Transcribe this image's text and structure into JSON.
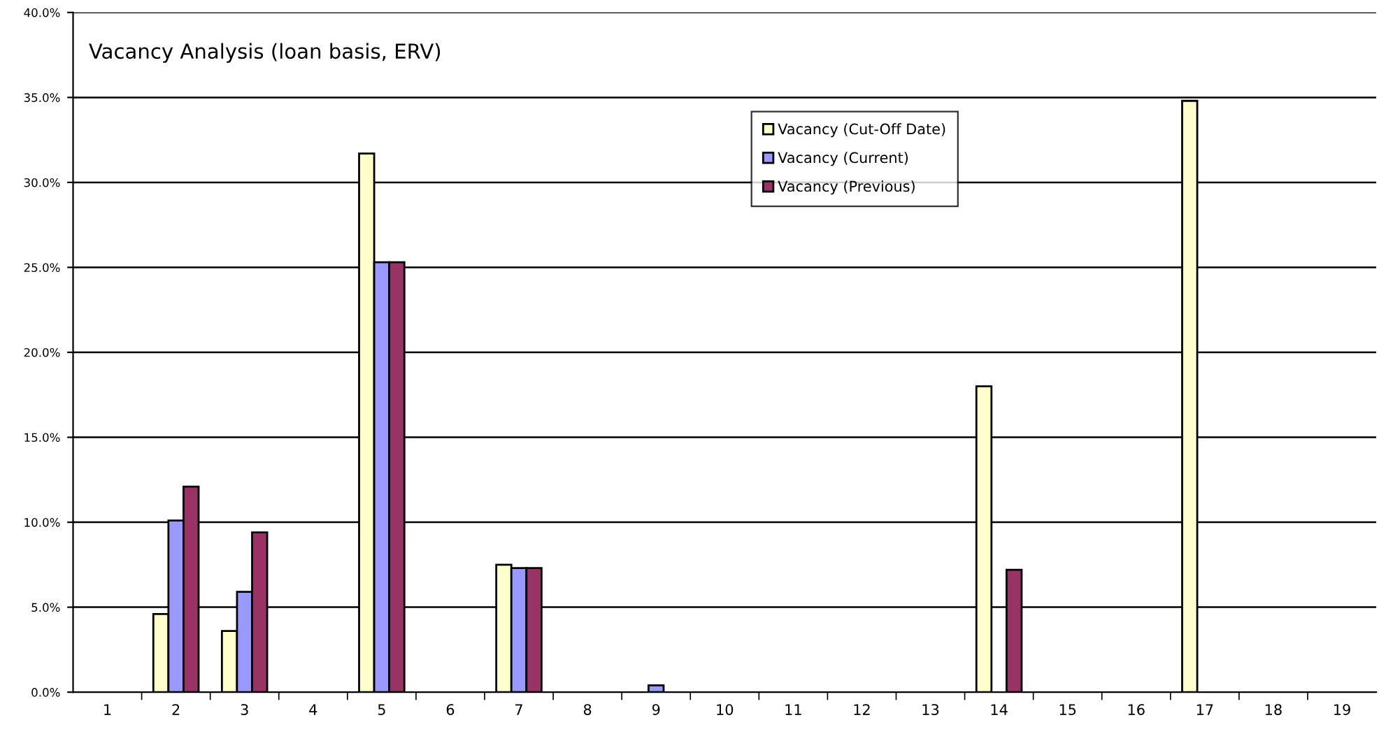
{
  "chart_data": {
    "type": "bar",
    "title": "Vacancy Analysis (loan basis, ERV)",
    "categories": [
      "1",
      "2",
      "3",
      "4",
      "5",
      "6",
      "7",
      "8",
      "9",
      "10",
      "11",
      "12",
      "13",
      "14",
      "15",
      "16",
      "17",
      "18",
      "19"
    ],
    "series": [
      {
        "name": "Vacancy (Cut-Off Date)",
        "color": "#ffffcc",
        "values": [
          null,
          4.6,
          3.6,
          null,
          31.7,
          null,
          7.5,
          null,
          null,
          null,
          null,
          null,
          null,
          18.0,
          null,
          null,
          34.8,
          null,
          null
        ]
      },
      {
        "name": "Vacancy (Current)",
        "color": "#9999ff",
        "values": [
          null,
          10.1,
          5.9,
          null,
          25.3,
          null,
          7.3,
          null,
          0.4,
          null,
          null,
          null,
          null,
          null,
          null,
          null,
          null,
          null,
          null
        ]
      },
      {
        "name": "Vacancy (Previous)",
        "color": "#993366",
        "values": [
          null,
          12.1,
          9.4,
          null,
          25.3,
          null,
          7.3,
          null,
          null,
          null,
          null,
          null,
          null,
          7.2,
          null,
          null,
          null,
          null,
          null
        ]
      }
    ],
    "ylim": [
      0,
      40
    ],
    "yticks": [
      {
        "value": 0,
        "label": "0.0%"
      },
      {
        "value": 5,
        "label": "5.0%"
      },
      {
        "value": 10,
        "label": "10.0%"
      },
      {
        "value": 15,
        "label": "15.0%"
      },
      {
        "value": 20,
        "label": "20.0%"
      },
      {
        "value": 25,
        "label": "25.0%"
      },
      {
        "value": 30,
        "label": "30.0%"
      },
      {
        "value": 35,
        "label": "35.0%"
      },
      {
        "value": 40,
        "label": "40.0%"
      }
    ],
    "grid": "y",
    "legend": "top"
  }
}
